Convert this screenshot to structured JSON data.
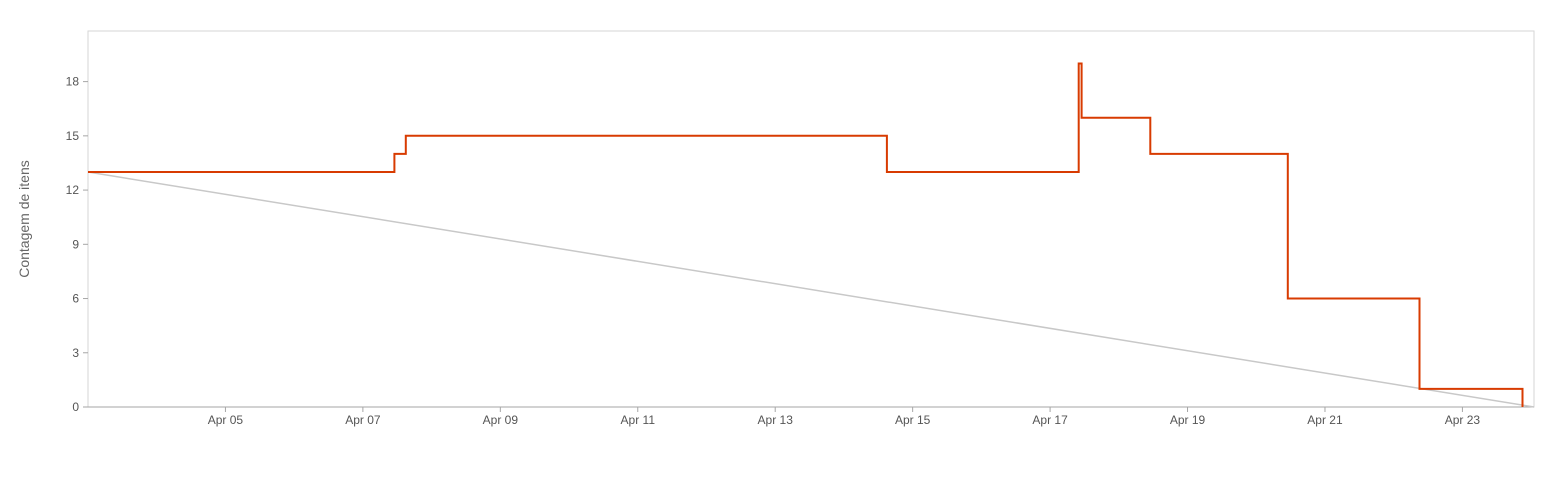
{
  "chart_data": {
    "type": "line",
    "title": "",
    "ylabel": "Contagem de itens",
    "xlabel": "",
    "ylim": [
      0,
      20.8
    ],
    "xlim": [
      "2024-04-03T00:00",
      "2024-04-24T01:00"
    ],
    "y_ticks": [
      0,
      3,
      6,
      9,
      12,
      15,
      18
    ],
    "x_ticks": [
      {
        "date": "2024-04-05",
        "label": "Apr 05"
      },
      {
        "date": "2024-04-07",
        "label": "Apr 07"
      },
      {
        "date": "2024-04-09",
        "label": "Apr 09"
      },
      {
        "date": "2024-04-11",
        "label": "Apr 11"
      },
      {
        "date": "2024-04-13",
        "label": "Apr 13"
      },
      {
        "date": "2024-04-15",
        "label": "Apr 15"
      },
      {
        "date": "2024-04-17",
        "label": "Apr 17"
      },
      {
        "date": "2024-04-19",
        "label": "Apr 19"
      },
      {
        "date": "2024-04-21",
        "label": "Apr 21"
      },
      {
        "date": "2024-04-23",
        "label": "Apr 23"
      }
    ],
    "grid": false,
    "series": [
      {
        "color": "#d83b01",
        "step": true,
        "points": [
          [
            "2024-04-03T00:00",
            13
          ],
          [
            "2024-04-07T11:00",
            14
          ],
          [
            "2024-04-07T15:00",
            15
          ],
          [
            "2024-04-14T15:00",
            13
          ],
          [
            "2024-04-17T10:00",
            19
          ],
          [
            "2024-04-17T11:00",
            16
          ],
          [
            "2024-04-18T11:00",
            14
          ],
          [
            "2024-04-20T11:00",
            6
          ],
          [
            "2024-04-22T09:00",
            1
          ],
          [
            "2024-04-23T21:00",
            0
          ]
        ]
      },
      {
        "color": "#c8c8c8",
        "step": false,
        "points": [
          [
            "2024-04-03T00:00",
            13
          ],
          [
            "2024-04-24T01:00",
            0
          ]
        ]
      }
    ],
    "colors": {
      "remaining": "#d83b01",
      "ideal": "#c8c8c8",
      "frame": "#d6d6d6",
      "axis": "#a6a6a6",
      "text": "#555555"
    }
  }
}
